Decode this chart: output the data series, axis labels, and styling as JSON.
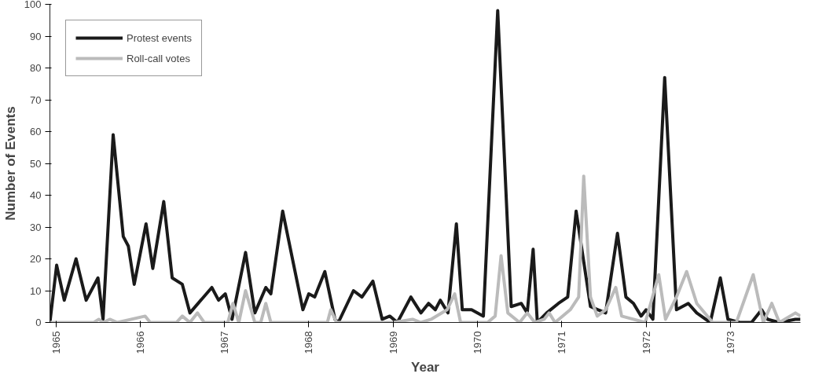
{
  "chart_data": {
    "type": "line",
    "xlabel": "Year",
    "ylabel": "Number of Events",
    "xlim": [
      1964.93,
      1973.83
    ],
    "ylim": [
      0,
      100
    ],
    "xticks": [
      1965,
      1966,
      1967,
      1968,
      1969,
      1970,
      1971,
      1972,
      1973
    ],
    "yticks": [
      0,
      10,
      20,
      30,
      40,
      50,
      60,
      70,
      80,
      90,
      100
    ],
    "grid": false,
    "legend": "top left",
    "line_style": "solid",
    "marker": "none",
    "series": [
      {
        "name": "Protest events",
        "color": "#1a1a1a",
        "x": [
          1964.93,
          1965.01,
          1965.1,
          1965.24,
          1965.36,
          1965.5,
          1965.56,
          1965.68,
          1965.8,
          1965.86,
          1965.93,
          1966.07,
          1966.15,
          1966.28,
          1966.38,
          1966.5,
          1966.59,
          1966.85,
          1966.93,
          1967.01,
          1967.09,
          1967.25,
          1967.36,
          1967.49,
          1967.55,
          1967.69,
          1967.93,
          1968.0,
          1968.07,
          1968.19,
          1968.31,
          1968.35,
          1968.53,
          1968.63,
          1968.76,
          1968.87,
          1968.96,
          1969.05,
          1969.21,
          1969.33,
          1969.42,
          1969.5,
          1969.56,
          1969.65,
          1969.75,
          1969.82,
          1969.93,
          1970.07,
          1970.24,
          1970.4,
          1970.52,
          1970.59,
          1970.66,
          1970.71,
          1970.82,
          1970.96,
          1971.07,
          1971.17,
          1971.34,
          1971.43,
          1971.52,
          1971.66,
          1971.76,
          1971.85,
          1971.94,
          1972.0,
          1972.08,
          1972.22,
          1972.36,
          1972.5,
          1972.6,
          1972.76,
          1972.88,
          1972.97,
          1973.11,
          1973.25,
          1973.37,
          1973.44,
          1973.58,
          1973.77,
          1973.83
        ],
        "values": [
          0,
          18,
          7,
          20,
          7,
          14,
          1,
          59,
          27,
          24,
          12,
          31,
          17,
          38,
          14,
          12,
          3,
          11,
          7,
          9,
          1,
          22,
          3,
          11,
          9,
          35,
          4,
          9,
          8,
          16,
          1,
          0,
          10,
          8,
          13,
          1,
          2,
          0,
          8,
          3,
          6,
          4,
          7,
          3,
          31,
          4,
          4,
          2,
          98,
          5,
          6,
          3,
          23,
          0,
          3,
          6,
          8,
          35,
          5,
          4,
          3,
          28,
          8,
          6,
          2,
          4,
          1,
          77,
          4,
          6,
          3,
          0,
          14,
          1,
          0,
          0,
          4,
          1,
          0,
          1,
          1
        ]
      },
      {
        "name": "Roll-call votes",
        "color": "#bbbbbb",
        "x": [
          1964.93,
          1965.45,
          1965.51,
          1965.56,
          1965.64,
          1965.73,
          1966.06,
          1966.12,
          1966.43,
          1966.5,
          1966.59,
          1966.68,
          1966.76,
          1967.04,
          1967.1,
          1967.17,
          1967.25,
          1967.36,
          1967.43,
          1967.49,
          1967.55,
          1968.22,
          1968.26,
          1968.33,
          1969.0,
          1969.23,
          1969.33,
          1969.45,
          1969.64,
          1969.73,
          1969.8,
          1970.12,
          1970.21,
          1970.28,
          1970.36,
          1970.5,
          1970.59,
          1970.68,
          1970.79,
          1970.85,
          1970.92,
          1971.1,
          1971.2,
          1971.26,
          1971.34,
          1971.42,
          1971.52,
          1971.64,
          1971.71,
          1971.99,
          1972.15,
          1972.23,
          1972.36,
          1972.48,
          1972.6,
          1972.79,
          1973.07,
          1973.27,
          1973.39,
          1973.49,
          1973.58,
          1973.77,
          1973.83
        ],
        "values": [
          0,
          0,
          1,
          0,
          1,
          0,
          2,
          0,
          0,
          2,
          0,
          3,
          0,
          0,
          6,
          0,
          10,
          0,
          0,
          6,
          0,
          0,
          4,
          0,
          0,
          1,
          0,
          1,
          4,
          9,
          0,
          0,
          2,
          21,
          3,
          0,
          3,
          0,
          1,
          3,
          0,
          4,
          8,
          46,
          8,
          2,
          4,
          11,
          2,
          0,
          15,
          1,
          8,
          16,
          6,
          0,
          0,
          15,
          0,
          6,
          0,
          3,
          2
        ]
      }
    ]
  }
}
